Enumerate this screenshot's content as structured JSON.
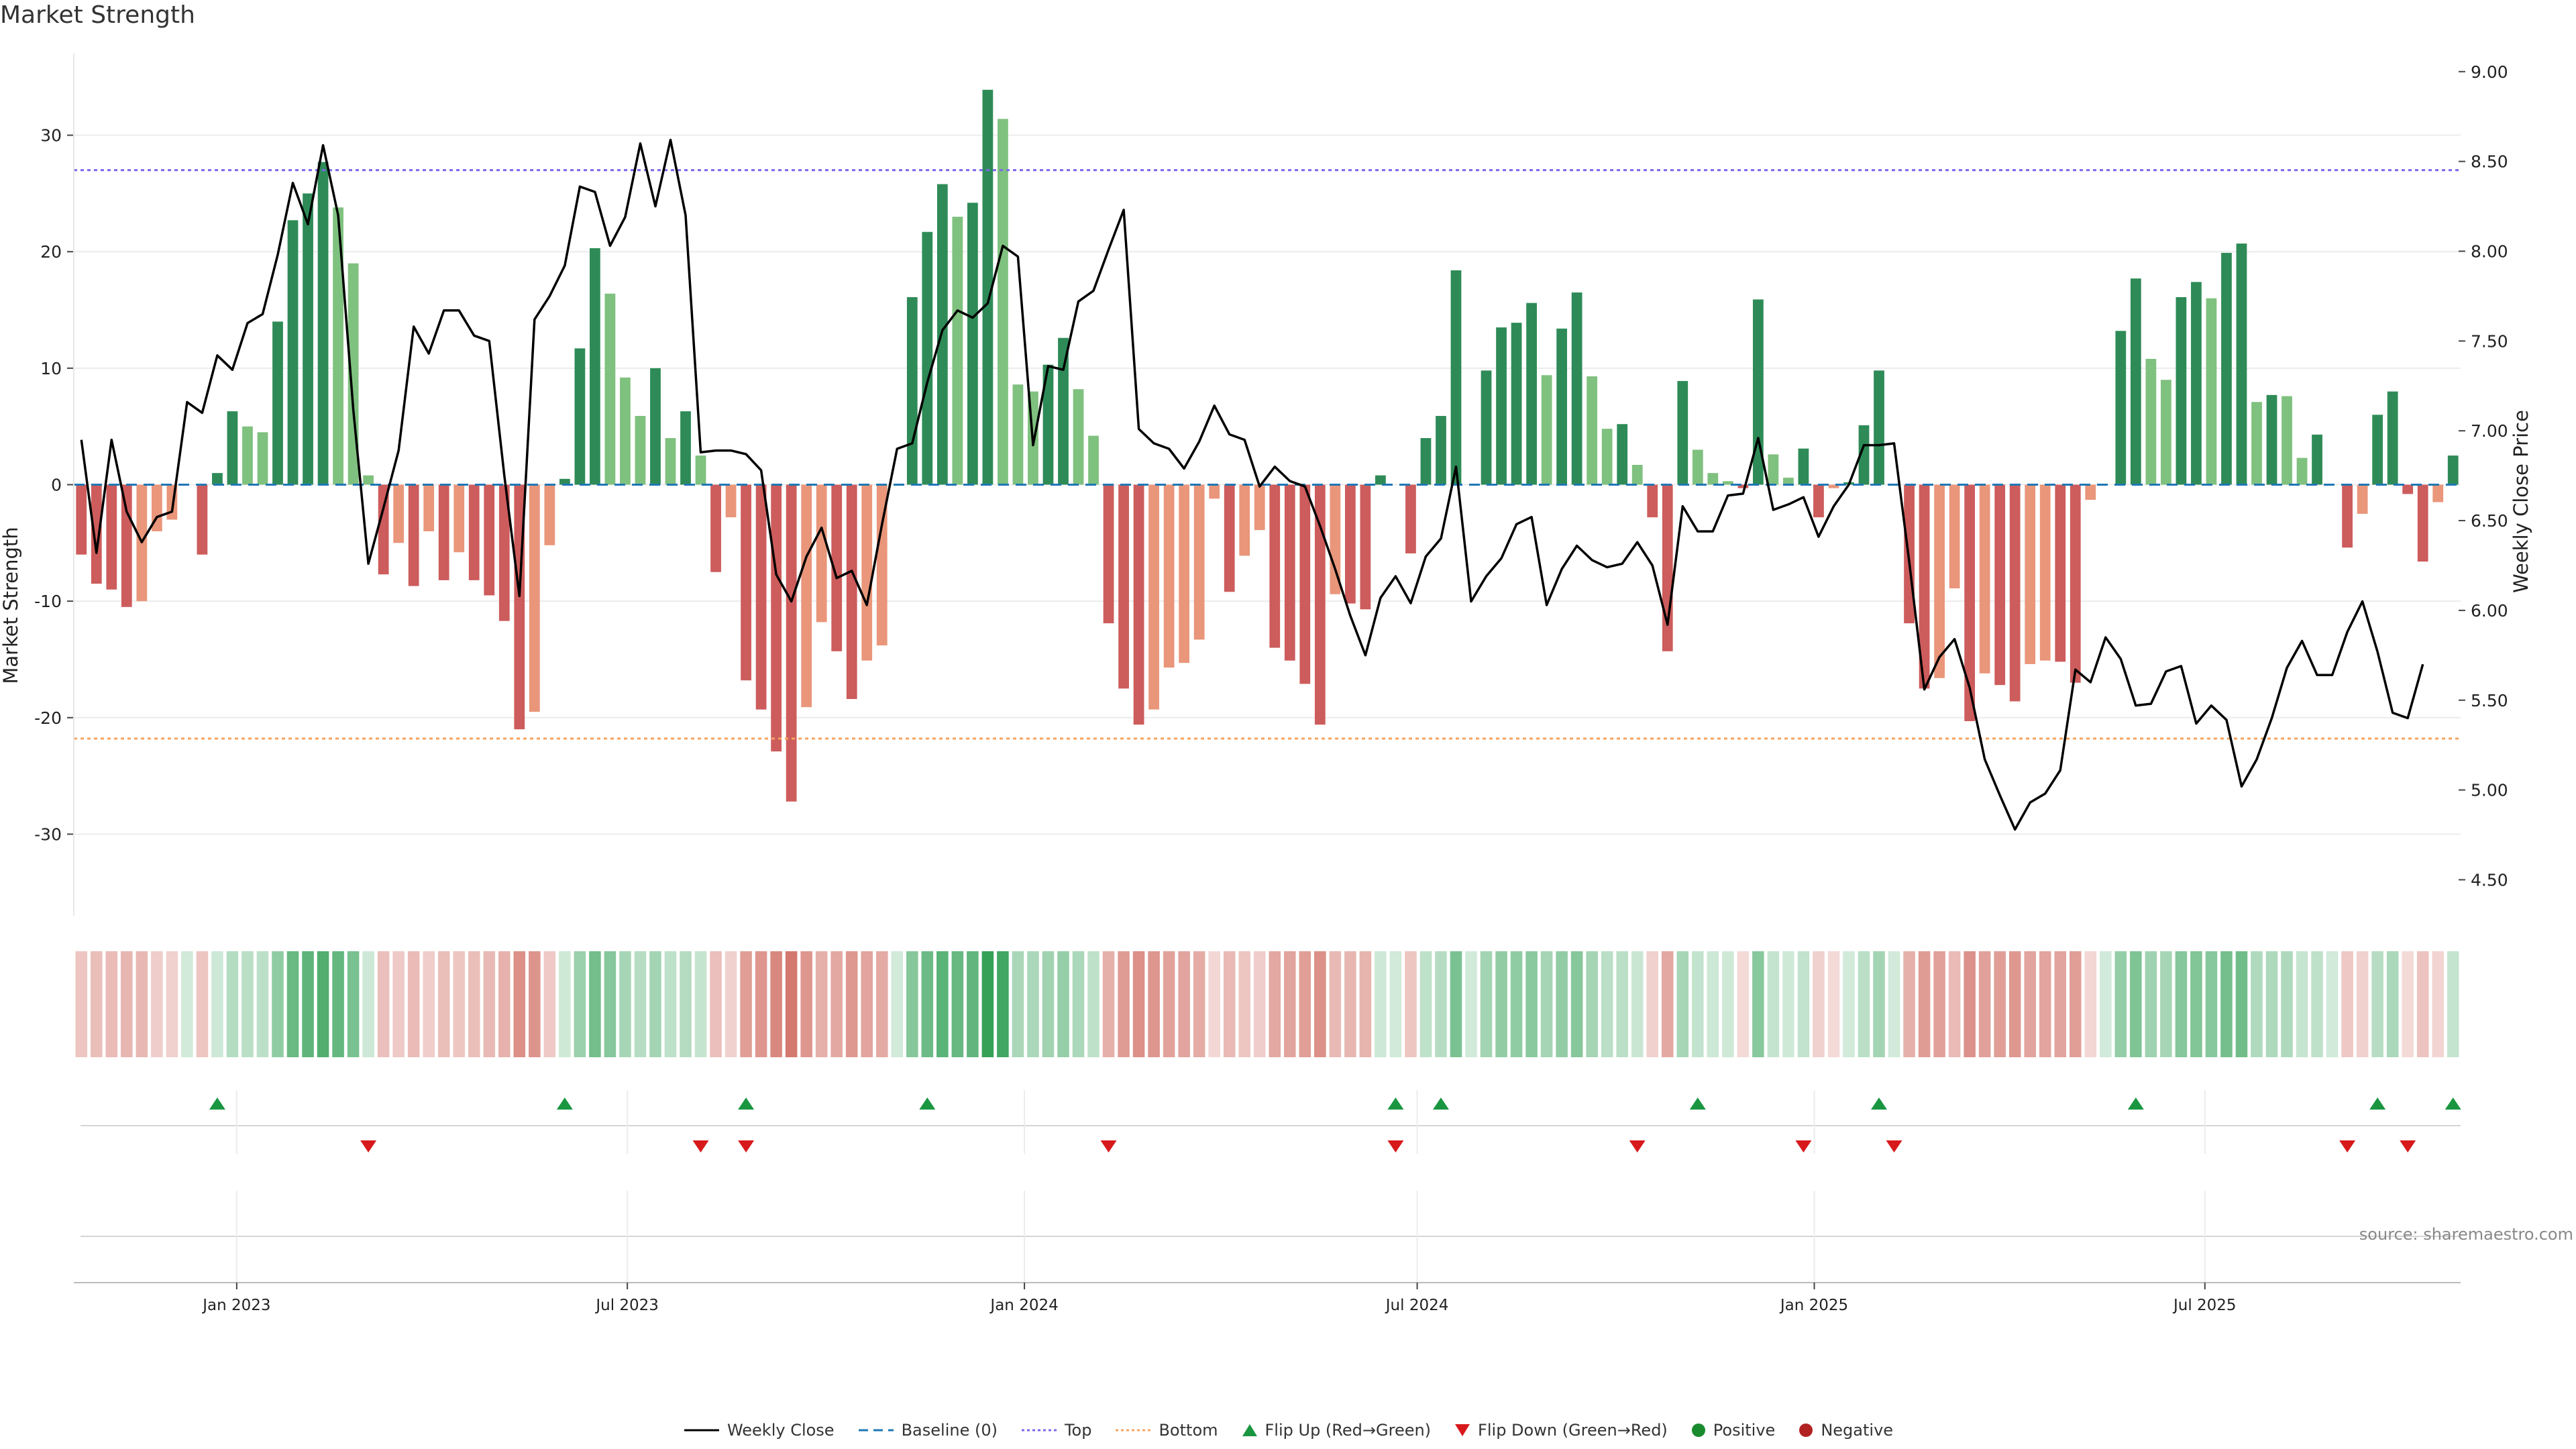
{
  "page": {
    "title": "Market Strength",
    "source": "source: sharemaestro.com"
  },
  "legend": [
    {
      "key": "close",
      "label": "Weekly Close"
    },
    {
      "key": "baseline",
      "label": "Baseline (0)"
    },
    {
      "key": "top",
      "label": "Top"
    },
    {
      "key": "bottom",
      "label": "Bottom"
    },
    {
      "key": "flipup",
      "label": "Flip Up (Red→Green)"
    },
    {
      "key": "flipdown",
      "label": "Flip Down (Green→Red)"
    },
    {
      "key": "positive",
      "label": "Positive"
    },
    {
      "key": "negative",
      "label": "Negative"
    }
  ],
  "colors": {
    "pos_strong": "#2e8b57",
    "pos_weak": "#7fc17f",
    "neg_strong": "#cd5c5c",
    "neg_weak": "#e9967a",
    "close": "#000000",
    "baseline": "#1f77b4",
    "top": "#7b68ee",
    "bottom": "#f4a460",
    "flip_up": "#1a9641",
    "flip_down": "#d7191c",
    "positive": "#1a8a2e",
    "negative": "#b22222"
  },
  "chart_data": {
    "type": "bar",
    "title": "Market Strength",
    "ylabel": "Market Strength",
    "y2label": "Weekly Close Price",
    "ylim": [
      -37,
      37
    ],
    "y2lim": [
      4.3,
      9.1
    ],
    "yticks": [
      -30,
      -20,
      -10,
      0,
      10,
      20,
      30
    ],
    "y2ticks": [
      4.5,
      5.0,
      5.5,
      6.0,
      6.5,
      7.0,
      7.5,
      8.0,
      8.5,
      9.0
    ],
    "top_line": 27,
    "bottom_line": -21.8,
    "start_date": "2022-10-21",
    "x_ticks": [
      {
        "date": "2023-01-01",
        "label": "Jan 2023"
      },
      {
        "date": "2023-07-01",
        "label": "Jul 2023"
      },
      {
        "date": "2024-01-01",
        "label": "Jan 2024"
      },
      {
        "date": "2024-07-01",
        "label": "Jul 2024"
      },
      {
        "date": "2025-01-01",
        "label": "Jan 2025"
      },
      {
        "date": "2025-07-01",
        "label": "Jul 2025"
      }
    ],
    "strength": [
      -6,
      -8.5,
      -9,
      -10.5,
      -10,
      -4,
      -3,
      0,
      -6,
      1,
      6.3,
      5,
      4.5,
      14,
      22.7,
      25,
      27.7,
      23.8,
      19,
      0.8,
      -7.7,
      -5,
      -8.7,
      -4,
      -8.2,
      -5.8,
      -8.2,
      -9.5,
      -11.7,
      -21,
      -19.5,
      -5.2,
      0.5,
      11.7,
      20.3,
      16.4,
      9.2,
      5.9,
      10,
      4,
      6.3,
      2.5,
      -7.5,
      -2.8,
      -16.8,
      -19.3,
      -22.9,
      -27.2,
      -19.1,
      -11.8,
      -14.3,
      -18.4,
      -15.1,
      -13.8,
      0,
      16.1,
      21.7,
      25.8,
      23,
      24.2,
      33.9,
      31.4,
      8.6,
      8,
      10.3,
      12.6,
      8.2,
      4.2,
      -11.9,
      -17.5,
      -20.6,
      -19.3,
      -15.7,
      -15.3,
      -13.3,
      -1.2,
      -9.2,
      -6.1,
      -3.9,
      -14,
      -15.1,
      -17.1,
      -20.6,
      -9.4,
      -10.2,
      -10.7,
      0.8,
      0,
      -5.9,
      4,
      5.9,
      18.4,
      0,
      9.8,
      13.5,
      13.9,
      15.6,
      9.4,
      13.4,
      16.5,
      9.3,
      4.8,
      5.2,
      1.7,
      -2.8,
      -14.3,
      8.9,
      3,
      1,
      0.3,
      -0.3,
      15.9,
      2.6,
      0.6,
      3.1,
      -2.8,
      -0.3,
      0.2,
      5.1,
      9.8,
      0,
      -11.9,
      -17.5,
      -16.6,
      -8.9,
      -20.3,
      -16.2,
      -17.2,
      -18.6,
      -15.4,
      -15.1,
      -15.2,
      -17,
      -1.3,
      0,
      13.2,
      17.7,
      10.8,
      9,
      16.1,
      17.4,
      16,
      19.9,
      20.7,
      7.1,
      7.7,
      7.6,
      2.3,
      4.3,
      0,
      -5.4,
      -2.5,
      6,
      8,
      -0.8,
      -6.6,
      -1.5,
      2.5
    ],
    "close": [
      6.95,
      6.32,
      6.95,
      6.55,
      6.38,
      6.52,
      6.55,
      7.16,
      7.1,
      7.42,
      7.34,
      7.6,
      7.65,
      7.98,
      8.38,
      8.15,
      8.59,
      8.2,
      7.12,
      6.26,
      6.57,
      6.89,
      7.58,
      7.43,
      7.67,
      7.67,
      7.53,
      7.5,
      6.75,
      6.08,
      7.62,
      7.75,
      7.92,
      8.36,
      8.33,
      8.03,
      8.19,
      8.6,
      8.25,
      8.62,
      8.2,
      6.88,
      6.89,
      6.89,
      6.87,
      6.78,
      6.2,
      6.05,
      6.3,
      6.46,
      6.18,
      6.22,
      6.03,
      6.48,
      6.9,
      6.93,
      7.27,
      7.56,
      7.67,
      7.63,
      7.71,
      8.03,
      7.97,
      6.92,
      7.36,
      7.34,
      7.72,
      7.78,
      8.01,
      8.23,
      7.01,
      6.93,
      6.9,
      6.79,
      6.94,
      7.14,
      6.98,
      6.95,
      6.69,
      6.8,
      6.72,
      6.69,
      6.47,
      6.23,
      5.97,
      5.75,
      6.07,
      6.19,
      6.04,
      6.3,
      6.4,
      6.8,
      6.05,
      6.19,
      6.29,
      6.48,
      6.52,
      6.03,
      6.23,
      6.36,
      6.28,
      6.24,
      6.26,
      6.38,
      6.25,
      5.92,
      6.58,
      6.44,
      6.44,
      6.64,
      6.65,
      6.96,
      6.56,
      6.59,
      6.63,
      6.41,
      6.58,
      6.7,
      6.92,
      6.92,
      6.93,
      6.27,
      5.56,
      5.74,
      5.84,
      5.57,
      5.17,
      4.97,
      4.78,
      4.93,
      4.98,
      5.11,
      5.67,
      5.6,
      5.85,
      5.73,
      5.47,
      5.48,
      5.66,
      5.69,
      5.37,
      5.47,
      5.39,
      5.02,
      5.17,
      5.4,
      5.68,
      5.83,
      5.64,
      5.64,
      5.88,
      6.05,
      5.77,
      5.43,
      5.4,
      5.7
    ],
    "flip_up_idx": [
      9,
      32,
      44,
      56,
      87,
      90,
      107,
      119,
      136,
      152,
      157
    ],
    "flip_down_idx": [
      19,
      41,
      44,
      68,
      87,
      103,
      114,
      120,
      150,
      154
    ],
    "panel_labels": {
      "positive": "Positive",
      "negative": "Negative"
    }
  }
}
